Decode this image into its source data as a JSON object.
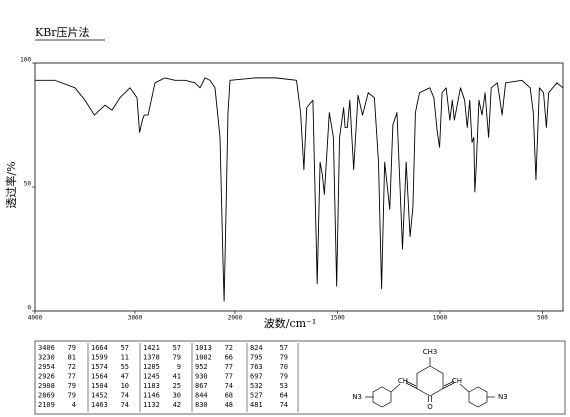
{
  "chart_data": {
    "type": "line",
    "title": "KBr压片法",
    "x_label": "波数/cm⁻¹",
    "y_label": "透过率/%",
    "xlim": [
      4000,
      400
    ],
    "ylim": [
      0,
      100
    ],
    "xticks": [
      4000,
      3000,
      2000,
      1500,
      1000,
      500
    ],
    "yticks": [
      0,
      50,
      100
    ],
    "series": [
      {
        "color": "#000000",
        "x": [
          4000,
          3800,
          3600,
          3500,
          3406,
          3300,
          3230,
          3150,
          3050,
          2980,
          2954,
          2926,
          2908,
          2869,
          2800,
          2700,
          2600,
          2500,
          2400,
          2350,
          2300,
          2250,
          2200,
          2150,
          2120,
          2109,
          2095,
          2070,
          2050,
          1900,
          1800,
          1700,
          1680,
          1664,
          1650,
          1620,
          1599,
          1585,
          1574,
          1564,
          1540,
          1520,
          1504,
          1490,
          1470,
          1463,
          1452,
          1440,
          1421,
          1400,
          1378,
          1350,
          1320,
          1300,
          1285,
          1270,
          1245,
          1230,
          1210,
          1195,
          1183,
          1165,
          1146,
          1132,
          1120,
          1100,
          1050,
          1030,
          1013,
          1002,
          990,
          970,
          952,
          940,
          930,
          900,
          880,
          867,
          855,
          844,
          835,
          830,
          824,
          810,
          795,
          780,
          763,
          750,
          720,
          697,
          680,
          600,
          560,
          545,
          532,
          527,
          515,
          495,
          481,
          470,
          430,
          400
        ],
        "values": [
          93,
          93,
          90,
          85,
          79,
          83,
          81,
          86,
          90,
          86,
          72,
          77,
          79,
          79,
          92,
          94,
          93,
          93,
          92,
          90,
          94,
          93,
          90,
          70,
          20,
          4,
          30,
          80,
          93,
          94,
          94,
          93,
          80,
          57,
          82,
          85,
          11,
          60,
          55,
          47,
          80,
          70,
          10,
          70,
          82,
          74,
          74,
          85,
          57,
          87,
          79,
          88,
          86,
          60,
          9,
          60,
          41,
          75,
          80,
          50,
          25,
          60,
          30,
          42,
          80,
          88,
          90,
          86,
          72,
          66,
          88,
          90,
          77,
          85,
          77,
          90,
          85,
          74,
          85,
          68,
          70,
          48,
          57,
          85,
          79,
          88,
          70,
          90,
          92,
          79,
          92,
          93,
          90,
          80,
          53,
          64,
          90,
          88,
          74,
          88,
          92,
          90
        ]
      }
    ]
  },
  "peak_table": {
    "columns": [
      [
        [
          3406,
          79
        ],
        [
          3230,
          81
        ],
        [
          2954,
          72
        ],
        [
          2926,
          77
        ],
        [
          2908,
          79
        ],
        [
          2869,
          79
        ],
        [
          2109,
          4
        ]
      ],
      [
        [
          1664,
          57
        ],
        [
          1599,
          11
        ],
        [
          1574,
          55
        ],
        [
          1564,
          47
        ],
        [
          1504,
          10
        ],
        [
          1452,
          74
        ],
        [
          1463,
          74
        ]
      ],
      [
        [
          1421,
          57
        ],
        [
          1378,
          79
        ],
        [
          1285,
          9
        ],
        [
          1245,
          41
        ],
        [
          1183,
          25
        ],
        [
          1146,
          30
        ],
        [
          1132,
          42
        ]
      ],
      [
        [
          1013,
          72
        ],
        [
          1002,
          66
        ],
        [
          952,
          77
        ],
        [
          930,
          77
        ],
        [
          867,
          74
        ],
        [
          844,
          68
        ],
        [
          830,
          48
        ]
      ],
      [
        [
          824,
          57
        ],
        [
          795,
          79
        ],
        [
          763,
          70
        ],
        [
          697,
          79
        ],
        [
          532,
          53
        ],
        [
          527,
          64
        ],
        [
          481,
          74
        ]
      ]
    ]
  },
  "structure": {
    "methyl": "CH3",
    "left_azide": "N3",
    "left_ch": "CH",
    "oxygen": "O",
    "right_ch": "CH",
    "right_azide": "N3"
  }
}
